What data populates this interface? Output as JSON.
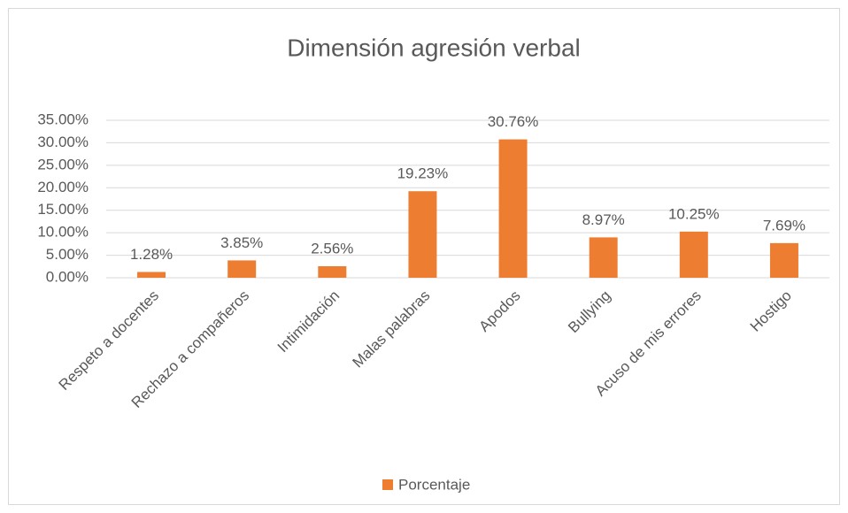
{
  "chart_data": {
    "type": "bar",
    "title": "Dimensión agresión verbal",
    "categories": [
      "Respeto a docentes",
      "Rechazo a compañeros",
      "Intimidación",
      "Malas palabras",
      "Apodos",
      "Bullying",
      "Acuso de mis errores",
      "Hostigo"
    ],
    "series": [
      {
        "name": "Porcentaje",
        "color": "#ed7d31",
        "values": [
          1.28,
          3.85,
          2.56,
          19.23,
          30.76,
          8.97,
          10.25,
          7.69
        ],
        "value_labels": [
          "1.28%",
          "3.85%",
          "2.56%",
          "19.23%",
          "30.76%",
          "8.97%",
          "10.25%",
          "7.69%"
        ]
      }
    ],
    "ylim": [
      0,
      35
    ],
    "yticks": [
      {
        "value": 0,
        "label": "0.00%"
      },
      {
        "value": 5,
        "label": "5.00%"
      },
      {
        "value": 10,
        "label": "10.00%"
      },
      {
        "value": 15,
        "label": "15.00%"
      },
      {
        "value": 20,
        "label": "20.00%"
      },
      {
        "value": 25,
        "label": "25.00%"
      },
      {
        "value": 30,
        "label": "30.00%"
      },
      {
        "value": 35,
        "label": "35.00%"
      }
    ],
    "grid": true,
    "legend": "bottom"
  }
}
